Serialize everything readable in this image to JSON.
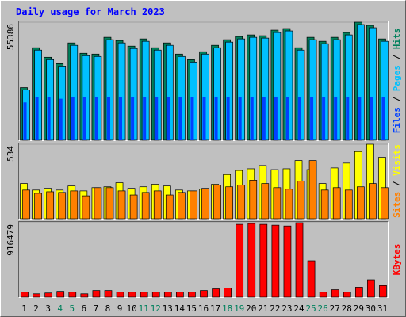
{
  "title": "Daily usage for March 2023",
  "legend_separator": "/",
  "categories": [
    "1",
    "2",
    "3",
    "4",
    "5",
    "6",
    "7",
    "8",
    "9",
    "10",
    "11",
    "12",
    "13",
    "14",
    "15",
    "16",
    "17",
    "18",
    "19",
    "20",
    "21",
    "22",
    "23",
    "24",
    "25",
    "26",
    "27",
    "28",
    "29",
    "30",
    "31"
  ],
  "weekend": [
    false,
    false,
    false,
    true,
    true,
    false,
    false,
    false,
    false,
    false,
    true,
    true,
    false,
    false,
    false,
    false,
    false,
    true,
    true,
    false,
    false,
    false,
    false,
    false,
    true,
    true,
    false,
    false,
    false,
    false,
    false
  ],
  "weekday_color": "#000000",
  "weekend_color": "#00805c",
  "chart_data": [
    {
      "type": "bar",
      "ylim": [
        0,
        55386
      ],
      "yticks": [
        55386
      ],
      "series": [
        {
          "name": "Hits",
          "color": "#00805c",
          "values": [
            24905,
            43491,
            39030,
            36057,
            45721,
            40889,
            40517,
            48324,
            46837,
            44234,
            47580,
            43491,
            45721,
            40517,
            37915,
            41633,
            44606,
            47208,
            48695,
            49439,
            49067,
            51669,
            52412,
            43491,
            48324,
            46465,
            48324,
            50554,
            55386,
            53899,
            47580
          ]
        },
        {
          "name": "Pages",
          "color": "#00c0ff",
          "values": [
            23790,
            42376,
            37915,
            34942,
            44606,
            39774,
            39402,
            47208,
            45721,
            43119,
            46465,
            42376,
            44606,
            39402,
            36800,
            40517,
            43491,
            46093,
            47580,
            48324,
            47952,
            50554,
            51297,
            42376,
            47208,
            45350,
            47208,
            49439,
            54271,
            52784,
            46465
          ]
        },
        {
          "name": "Files",
          "color": "#0040ff",
          "values": [
            18000,
            20440,
            20440,
            19700,
            20440,
            20440,
            20440,
            20440,
            20440,
            20440,
            20440,
            20440,
            20440,
            20440,
            20440,
            20440,
            20440,
            20440,
            20440,
            20440,
            20440,
            20440,
            20440,
            20440,
            20440,
            20440,
            20440,
            20440,
            20440,
            20440,
            20440
          ]
        }
      ]
    },
    {
      "type": "bar",
      "ylim": [
        0,
        534
      ],
      "yticks": [
        534
      ],
      "series": [
        {
          "name": "Visits",
          "color": "#ffff00",
          "values": [
            255,
            209,
            221,
            209,
            238,
            203,
            226,
            232,
            261,
            221,
            232,
            250,
            238,
            209,
            203,
            215,
            250,
            319,
            348,
            360,
            383,
            354,
            360,
            418,
            354,
            255,
            366,
            400,
            482,
            534,
            441
          ]
        },
        {
          "name": "Sites",
          "color": "#ff8000",
          "values": [
            209,
            186,
            197,
            192,
            203,
            168,
            226,
            226,
            203,
            174,
            192,
            203,
            174,
            192,
            203,
            221,
            244,
            232,
            244,
            279,
            255,
            226,
            215,
            273,
            418,
            209,
            226,
            209,
            232,
            255,
            226
          ]
        }
      ]
    },
    {
      "type": "bar",
      "ylim": [
        0,
        916479
      ],
      "yticks": [
        916479
      ],
      "series": [
        {
          "name": "KBytes",
          "color": "#ff0000",
          "values": [
            70500,
            50356,
            60427,
            80570,
            70498,
            50356,
            90641,
            90641,
            70498,
            70498,
            70498,
            70498,
            70498,
            70498,
            70498,
            90641,
            110783,
            120854,
            896335,
            906407,
            896335,
            886264,
            876192,
            916479,
            453203,
            70498,
            100712,
            70498,
            130926,
            221566,
            151069
          ]
        }
      ]
    }
  ]
}
